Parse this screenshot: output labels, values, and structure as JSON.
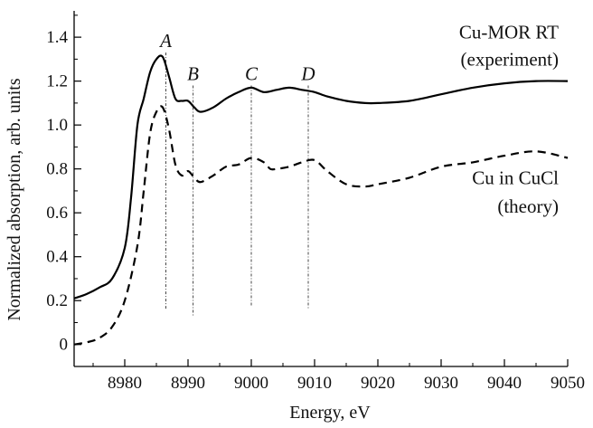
{
  "chart_data": {
    "type": "line",
    "title": "",
    "xlabel": "Energy, eV",
    "ylabel": "Normalized absorption, arb. units",
    "xlim": [
      8972,
      9050
    ],
    "ylim": [
      -0.1,
      1.52
    ],
    "x_ticks": [
      8980,
      8990,
      9000,
      9010,
      9020,
      9030,
      9040,
      9050
    ],
    "x_tick_labels": [
      "8980",
      "8990",
      "9000",
      "9010",
      "9020",
      "9030",
      "9040",
      "9050"
    ],
    "y_ticks": [
      0,
      0.2,
      0.4,
      0.6,
      0.8,
      1.0,
      1.2,
      1.4
    ],
    "y_tick_labels": [
      "0",
      "0.2",
      "0.4",
      "0.6",
      "0.8",
      "1.0",
      "1.2",
      "1.4"
    ],
    "grid": false,
    "series": [
      {
        "label_lines": [
          "Cu-MOR RT",
          "(experiment)"
        ],
        "style": "solid",
        "color": "#000000",
        "x": [
          8972,
          8974,
          8976,
          8978,
          8980,
          8981,
          8982,
          8983,
          8984,
          8985,
          8986,
          8987,
          8988,
          8989,
          8990,
          8991,
          8992,
          8994,
          8996,
          8998,
          9000,
          9002,
          9004,
          9006,
          9008,
          9010,
          9012,
          9015,
          9018,
          9020,
          9025,
          9030,
          9035,
          9040,
          9045,
          9050
        ],
        "y": [
          0.21,
          0.23,
          0.26,
          0.3,
          0.44,
          0.67,
          1.0,
          1.12,
          1.24,
          1.3,
          1.31,
          1.22,
          1.12,
          1.11,
          1.11,
          1.08,
          1.06,
          1.08,
          1.12,
          1.15,
          1.17,
          1.15,
          1.16,
          1.17,
          1.16,
          1.15,
          1.13,
          1.11,
          1.1,
          1.1,
          1.11,
          1.14,
          1.17,
          1.19,
          1.2,
          1.2
        ]
      },
      {
        "label_lines": [
          "Cu in CuCl",
          "(theory)"
        ],
        "style": "dashed",
        "color": "#000000",
        "x": [
          8972,
          8974,
          8976,
          8978,
          8980,
          8982,
          8983,
          8984,
          8985,
          8986,
          8987,
          8988,
          8989,
          8990,
          8991,
          8992,
          8994,
          8996,
          8998,
          9000,
          9002,
          9003,
          9004,
          9006,
          9008,
          9010,
          9012,
          9015,
          9018,
          9020,
          9025,
          9030,
          9035,
          9040,
          9045,
          9050
        ],
        "y": [
          0.0,
          0.01,
          0.03,
          0.08,
          0.2,
          0.45,
          0.7,
          0.96,
          1.06,
          1.08,
          0.98,
          0.82,
          0.77,
          0.79,
          0.76,
          0.74,
          0.77,
          0.81,
          0.82,
          0.85,
          0.83,
          0.8,
          0.8,
          0.81,
          0.83,
          0.84,
          0.79,
          0.73,
          0.72,
          0.73,
          0.76,
          0.81,
          0.83,
          0.86,
          0.88,
          0.85
        ]
      }
    ],
    "markers": [
      {
        "label": "A",
        "x": 8986.5,
        "y_top": 1.33,
        "y_bottom": 0.16
      },
      {
        "label": "B",
        "x": 8990.8,
        "y_top": 1.18,
        "y_bottom": 0.13
      },
      {
        "label": "C",
        "x": 9000,
        "y_top": 1.18,
        "y_bottom": 0.17
      },
      {
        "label": "D",
        "x": 9009,
        "y_top": 1.18,
        "y_bottom": 0.16
      }
    ]
  }
}
